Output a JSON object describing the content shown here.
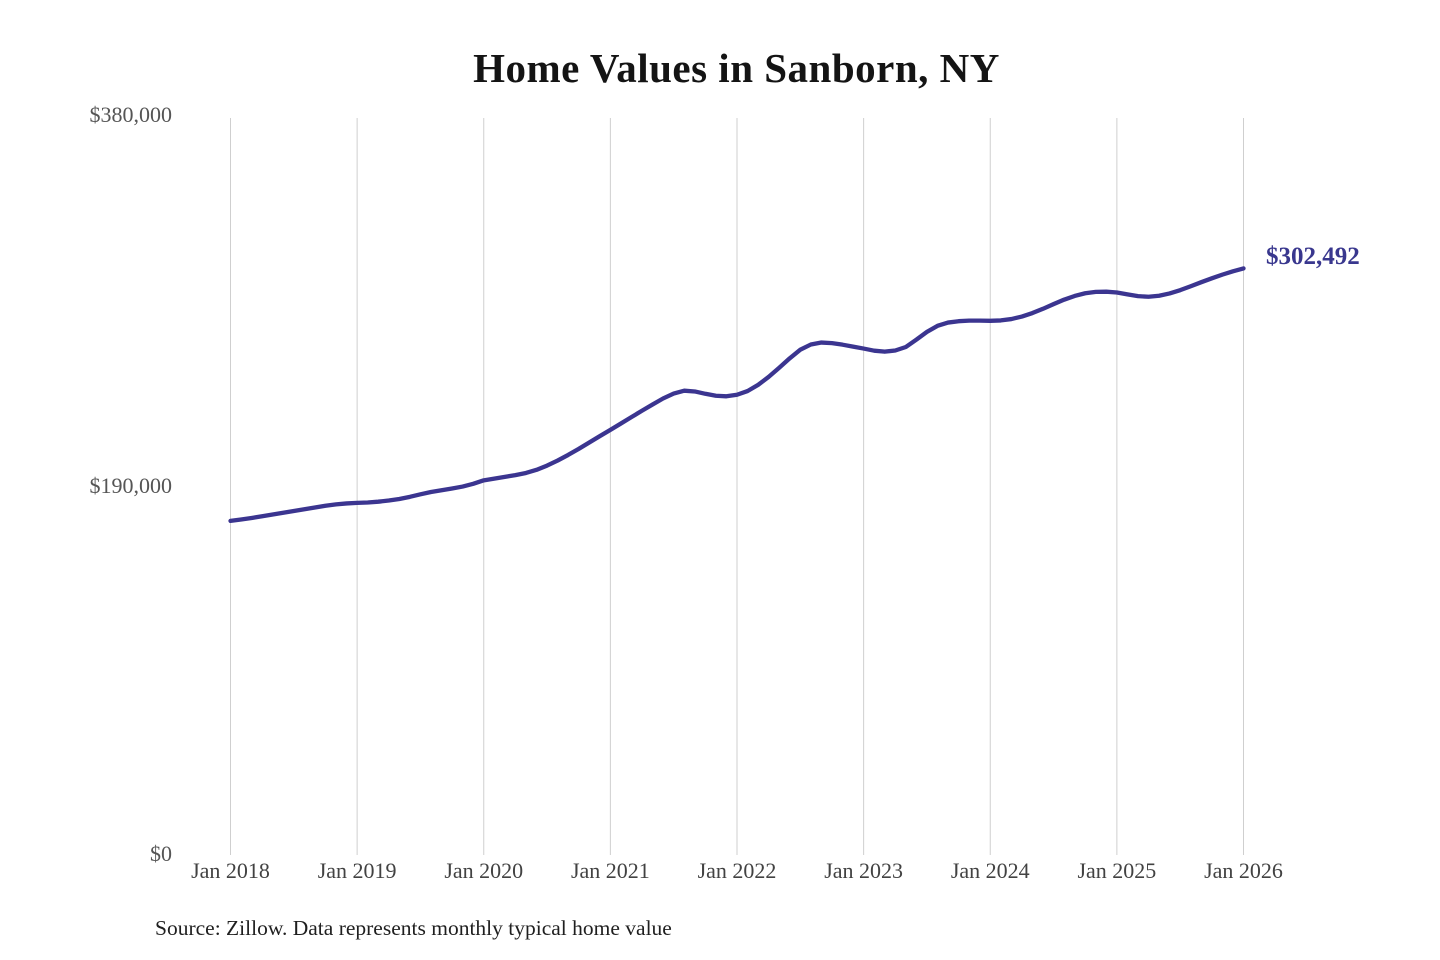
{
  "chart_data": {
    "type": "line",
    "title": "Home Values in Sanborn, NY",
    "x_tick_labels": [
      "Jan 2018",
      "Jan 2019",
      "Jan 2020",
      "Jan 2021",
      "Jan 2022",
      "Jan 2023",
      "Jan 2024",
      "Jan 2025",
      "Jan 2026"
    ],
    "y_tick_labels": [
      "$0",
      "$190,000",
      "$380,000"
    ],
    "y_ticks": [
      0,
      190000,
      380000
    ],
    "ylim": [
      0,
      380000
    ],
    "grid": "vertical-only",
    "legend": "none",
    "end_label_text": "$302,492",
    "series": [
      {
        "name": "typical-home-value",
        "frequency": "monthly",
        "start": "Jan 2018",
        "end": "Jan 2026",
        "end_value": 302492,
        "values": [
          172400,
          173100,
          173900,
          174800,
          175700,
          176600,
          177500,
          178400,
          179300,
          180200,
          180900,
          181400,
          181700,
          181900,
          182300,
          182900,
          183700,
          184800,
          186100,
          187300,
          188200,
          189100,
          190100,
          191500,
          193300,
          194200,
          195100,
          196000,
          197100,
          198700,
          200900,
          203500,
          206400,
          209500,
          212800,
          216100,
          219300,
          222600,
          225900,
          229200,
          232400,
          235500,
          238000,
          239500,
          239100,
          237900,
          236900,
          236600,
          237400,
          239300,
          242500,
          246600,
          251300,
          256200,
          260600,
          263300,
          264300,
          264000,
          263200,
          262200,
          261200,
          260100,
          259600,
          260200,
          262000,
          265800,
          269800,
          272900,
          274600,
          275300,
          275600,
          275600,
          275500,
          275700,
          276400,
          277700,
          279500,
          281700,
          284100,
          286400,
          288300,
          289700,
          290400,
          290500,
          290100,
          289100,
          288200,
          287900,
          288400,
          289600,
          291300,
          293300,
          295400,
          297400,
          299300,
          301000,
          302492
        ]
      }
    ]
  },
  "source_note": "Source: Zillow. Data represents monthly typical home value",
  "colors": {
    "line": "#3b3590",
    "end_label": "#39378e",
    "gridline": "#cfcfcf",
    "y_axis_text": "#555555",
    "x_axis_text": "#424242",
    "title_text": "#141414",
    "background": "#ffffff"
  }
}
